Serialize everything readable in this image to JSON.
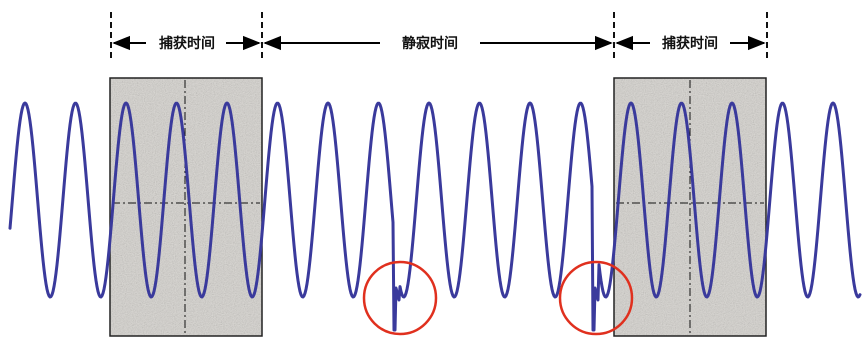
{
  "labels": {
    "capture_left": "捕获时间",
    "dead_time": "静寂时间",
    "capture_right": "捕获时间"
  },
  "colors": {
    "waveform": "#3a3a9c",
    "marker_circle": "#e0301e",
    "capture_fill": "#dcdad6",
    "box_stroke": "#222222",
    "dashed_line": "#111111",
    "arrow": "#000000"
  },
  "diagram": {
    "capture_windows": 2,
    "glitch_markers": 2
  }
}
